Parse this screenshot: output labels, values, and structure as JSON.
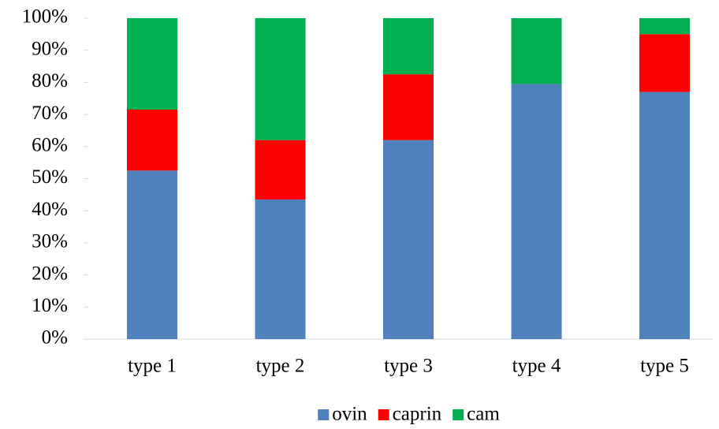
{
  "chart_data": {
    "type": "stacked_bar_100",
    "categories": [
      "type 1",
      "type 2",
      "type 3",
      "type 4",
      "type 5"
    ],
    "series": [
      {
        "name": "ovin",
        "color": "#4f81bd",
        "values": [
          52.5,
          43.5,
          62,
          79.5,
          77
        ]
      },
      {
        "name": "caprin",
        "color": "#ff0000",
        "values": [
          19,
          18.5,
          20.5,
          0,
          18
        ]
      },
      {
        "name": "cam",
        "color": "#00b050",
        "values": [
          28.5,
          38,
          17.5,
          20.5,
          5
        ]
      }
    ],
    "ylim": [
      0,
      100
    ],
    "yticks": [
      {
        "value": 0,
        "label": "0%"
      },
      {
        "value": 10,
        "label": "10%"
      },
      {
        "value": 20,
        "label": "20%"
      },
      {
        "value": 30,
        "label": "30%"
      },
      {
        "value": 40,
        "label": "40%"
      },
      {
        "value": 50,
        "label": "50%"
      },
      {
        "value": 60,
        "label": "60%"
      },
      {
        "value": 70,
        "label": "70%"
      },
      {
        "value": 80,
        "label": "80%"
      },
      {
        "value": 90,
        "label": "90%"
      },
      {
        "value": 100,
        "label": "100%"
      }
    ],
    "legend": "bottom"
  }
}
